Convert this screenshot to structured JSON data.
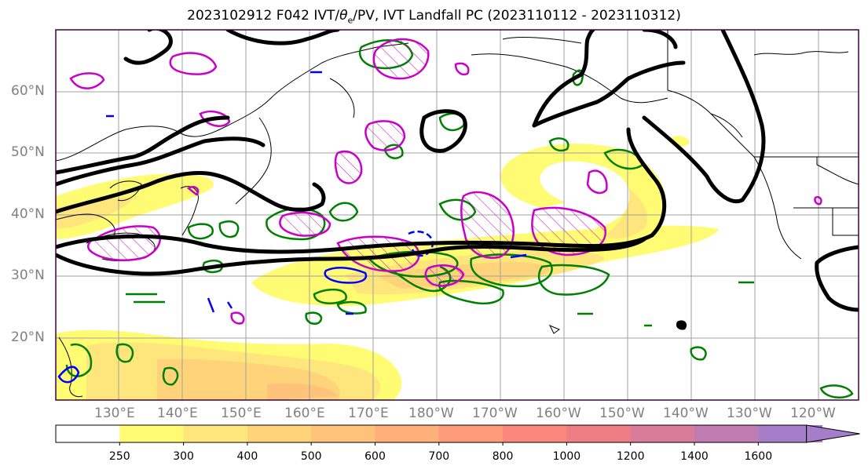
{
  "title": {
    "prefix": "2023102912 F042 IVT/",
    "theta": "θ",
    "theta_sub": "e",
    "suffix": "/PV, IVT Landfall PC (2023110112 - 2023110312)"
  },
  "lat_labels": [
    "60°N",
    "50°N",
    "40°N",
    "30°N",
    "20°N"
  ],
  "lon_labels": [
    "130°E",
    "140°E",
    "150°E",
    "160°E",
    "170°E",
    "180°W",
    "170°W",
    "160°W",
    "150°W",
    "140°W",
    "130°W",
    "120°W"
  ],
  "colorbar": {
    "ticks": [
      "250",
      "300",
      "400",
      "500",
      "600",
      "700",
      "800",
      "1000",
      "1200",
      "1400",
      "1600"
    ],
    "colors": [
      "#ffffff",
      "#fffb72",
      "#fee67c",
      "#fed37a",
      "#fec27a",
      "#feb07a",
      "#fd9a7a",
      "#fb867b",
      "#ef7e84",
      "#d87c99",
      "#c07cb1",
      "#a57dc8"
    ]
  },
  "legend_colors": {
    "ivt_landfall_pc": "#000000",
    "theta_e": "#008000",
    "pv_magenta": "#c800c8",
    "pv_blue": "#0000ff"
  }
}
